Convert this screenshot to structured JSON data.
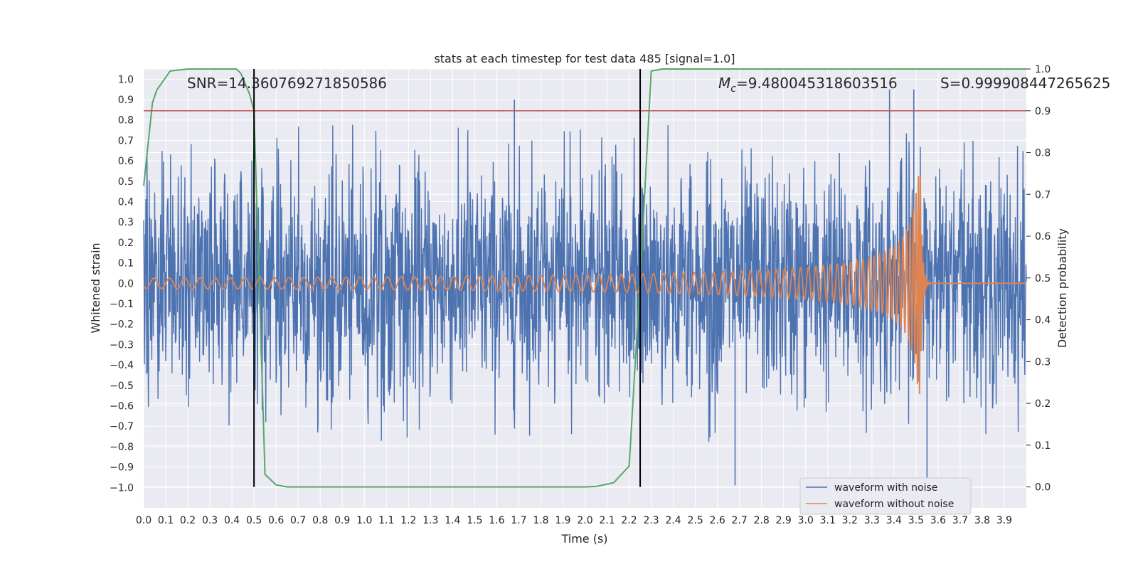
{
  "chart_data": {
    "type": "line",
    "title": "stats at each timestep for test data 485 [signal=1.0]",
    "xlabel": "Time (s)",
    "ylabel": "Whitened strain",
    "y2label": "Detection probability",
    "xlim": [
      0.0,
      4.0
    ],
    "ylim": [
      -1.1,
      1.05
    ],
    "y2lim": [
      -0.05,
      1.0
    ],
    "xticks": [
      "0.0",
      "0.1",
      "0.2",
      "0.3",
      "0.4",
      "0.5",
      "0.6",
      "0.7",
      "0.8",
      "0.9",
      "1.0",
      "1.1",
      "1.2",
      "1.3",
      "1.4",
      "1.5",
      "1.6",
      "1.7",
      "1.8",
      "1.9",
      "2.0",
      "2.1",
      "2.2",
      "2.3",
      "2.4",
      "2.5",
      "2.6",
      "2.7",
      "2.8",
      "2.9",
      "3.0",
      "3.1",
      "3.2",
      "3.3",
      "3.4",
      "3.5",
      "3.6",
      "3.7",
      "3.8",
      "3.9"
    ],
    "yticks": [
      "1.0",
      "0.9",
      "0.8",
      "0.7",
      "0.6",
      "0.5",
      "0.4",
      "0.3",
      "0.2",
      "0.1",
      "0.0",
      "-0.1",
      "-0.2",
      "-0.3",
      "-0.4",
      "-0.5",
      "-0.6",
      "-0.7",
      "-0.8",
      "-0.9",
      "-1.0"
    ],
    "y2ticks": [
      "1.0",
      "0.9",
      "0.8",
      "0.7",
      "0.6",
      "0.5",
      "0.4",
      "0.3",
      "0.2",
      "0.1",
      "0.0"
    ],
    "grid": true,
    "legend_position": "bottom-right",
    "annotations": {
      "snr": "SNR=14.360769271850586",
      "mc_symbol": "M",
      "mc_sub": "c",
      "mc_value": "=9.480045318603516",
      "s": "S=0.999908447265625"
    },
    "threshold": {
      "axis": "y2",
      "value": 0.9,
      "color": "#c44e52"
    },
    "vlines": [
      0.5,
      2.25
    ],
    "series": [
      {
        "name": "waveform with noise",
        "color": "#4c72b0",
        "kind": "noise",
        "std": 0.28,
        "peaks": [
          [
            1.68,
            0.9
          ],
          [
            2.68,
            -0.99
          ],
          [
            3.38,
            0.95
          ],
          [
            3.49,
            0.95
          ],
          [
            3.55,
            -0.97
          ]
        ]
      },
      {
        "name": "waveform without noise",
        "color": "#dd8452",
        "kind": "chirp",
        "merger_time": 3.52,
        "base_amplitude": 0.025,
        "peak_amplitude": 0.55
      },
      {
        "name": "",
        "color": "#55a868",
        "axis": "y2",
        "x": [
          0.0,
          0.04,
          0.06,
          0.1,
          0.12,
          0.2,
          0.3,
          0.42,
          0.44,
          0.48,
          0.5,
          0.55,
          0.6,
          0.65,
          0.8,
          1.0,
          1.5,
          2.0,
          2.05,
          2.13,
          2.2,
          2.25,
          2.3,
          2.35,
          2.4,
          3.0,
          3.5,
          4.0
        ],
        "values": [
          0.72,
          0.92,
          0.95,
          0.98,
          0.995,
          1.0,
          1.0,
          1.0,
          0.99,
          0.94,
          0.9,
          0.03,
          0.005,
          0.0,
          0.0,
          0.0,
          0.0,
          0.0,
          0.001,
          0.01,
          0.05,
          0.5,
          0.995,
          1.0,
          1.0,
          1.0,
          1.0,
          1.0
        ]
      }
    ]
  }
}
